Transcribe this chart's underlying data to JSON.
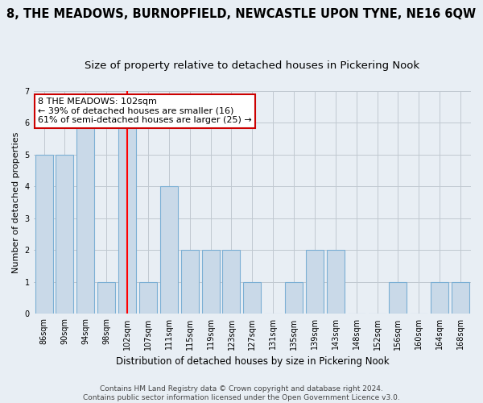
{
  "title": "8, THE MEADOWS, BURNOPFIELD, NEWCASTLE UPON TYNE, NE16 6QW",
  "subtitle": "Size of property relative to detached houses in Pickering Nook",
  "xlabel": "Distribution of detached houses by size in Pickering Nook",
  "ylabel": "Number of detached properties",
  "categories": [
    "86sqm",
    "90sqm",
    "94sqm",
    "98sqm",
    "102sqm",
    "107sqm",
    "111sqm",
    "115sqm",
    "119sqm",
    "123sqm",
    "127sqm",
    "131sqm",
    "135sqm",
    "139sqm",
    "143sqm",
    "148sqm",
    "152sqm",
    "156sqm",
    "160sqm",
    "164sqm",
    "168sqm"
  ],
  "values": [
    5,
    5,
    6,
    1,
    6,
    1,
    4,
    2,
    2,
    2,
    1,
    0,
    1,
    2,
    2,
    0,
    0,
    1,
    0,
    1,
    1
  ],
  "bar_color": "#c9d9e8",
  "bar_edge_color": "#7bafd4",
  "red_line_index": 4,
  "ylim": [
    0,
    7
  ],
  "yticks": [
    0,
    1,
    2,
    3,
    4,
    5,
    6,
    7
  ],
  "annotation_line1": "8 THE MEADOWS: 102sqm",
  "annotation_line2": "← 39% of detached houses are smaller (16)",
  "annotation_line3": "61% of semi-detached houses are larger (25) →",
  "annotation_box_color": "#ffffff",
  "annotation_box_edge_color": "#cc0000",
  "footer_line1": "Contains HM Land Registry data © Crown copyright and database right 2024.",
  "footer_line2": "Contains public sector information licensed under the Open Government Licence v3.0.",
  "background_color": "#e8eef4",
  "grid_color": "#c0c8d0",
  "title_fontsize": 10.5,
  "subtitle_fontsize": 9.5,
  "ylabel_fontsize": 8,
  "xlabel_fontsize": 8.5,
  "tick_fontsize": 7,
  "annotation_fontsize": 8,
  "footer_fontsize": 6.5
}
